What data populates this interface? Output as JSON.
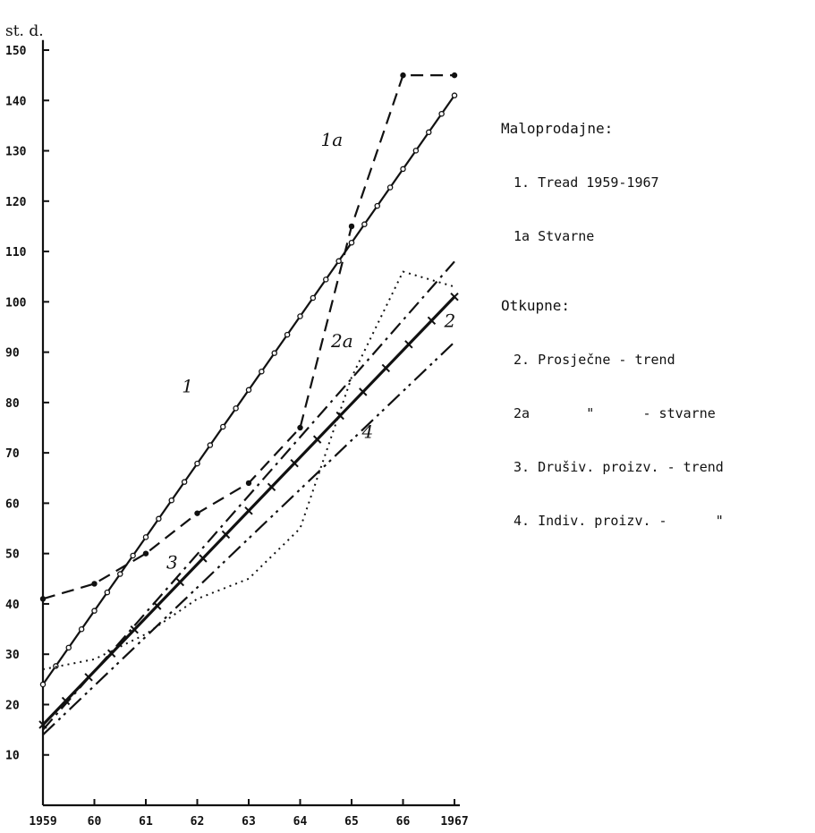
{
  "chart_data": {
    "type": "line",
    "title": "",
    "ylabel": "st. d.",
    "xlabel": "",
    "x": [
      1959,
      1960,
      1961,
      1962,
      1963,
      1964,
      1965,
      1966,
      1967
    ],
    "x_tick_labels": [
      "1959",
      "60",
      "61",
      "62",
      "63",
      "64",
      "65",
      "66",
      "1967"
    ],
    "y_ticks": [
      10,
      20,
      30,
      40,
      50,
      60,
      70,
      80,
      90,
      100,
      110,
      120,
      130,
      140,
      150
    ],
    "xlim": [
      1959,
      1967
    ],
    "ylim": [
      0,
      150
    ],
    "grid": false,
    "series": [
      {
        "name": "1",
        "style": "line-circles",
        "x": [
          1959,
          1967
        ],
        "values": [
          24,
          141
        ]
      },
      {
        "name": "1a",
        "style": "dashed-dots",
        "x": [
          1959,
          1960,
          1961,
          1962,
          1963,
          1964,
          1965,
          1966,
          1967
        ],
        "values": [
          41,
          44,
          50,
          58,
          64,
          75,
          115,
          145,
          145
        ]
      },
      {
        "name": "2",
        "style": "line-crosses",
        "x": [
          1959,
          1967
        ],
        "values": [
          16,
          101
        ]
      },
      {
        "name": "2a",
        "style": "dotted",
        "x": [
          1959,
          1960,
          1961,
          1962,
          1963,
          1964,
          1965,
          1966,
          1967
        ],
        "values": [
          27,
          29,
          34,
          41,
          45,
          55,
          85,
          106,
          103
        ]
      },
      {
        "name": "3",
        "style": "dash-dot",
        "x": [
          1959,
          1967
        ],
        "values": [
          15,
          108
        ]
      },
      {
        "name": "4",
        "style": "dash-dot-dot",
        "x": [
          1959,
          1967
        ],
        "values": [
          14,
          92
        ]
      }
    ]
  },
  "legend": {
    "retail_heading": "Maloprodajne:",
    "retail_items": [
      "1. Tread 1959-1967",
      "1a Stvarne"
    ],
    "purchase_heading": "Otkupne:",
    "purchase_items": [
      "2. Prosječne - trend",
      "2a       \"      - stvarne",
      "3. Drušiv. proizv. - trend",
      "4. Indiv. proizv. -      \""
    ]
  }
}
